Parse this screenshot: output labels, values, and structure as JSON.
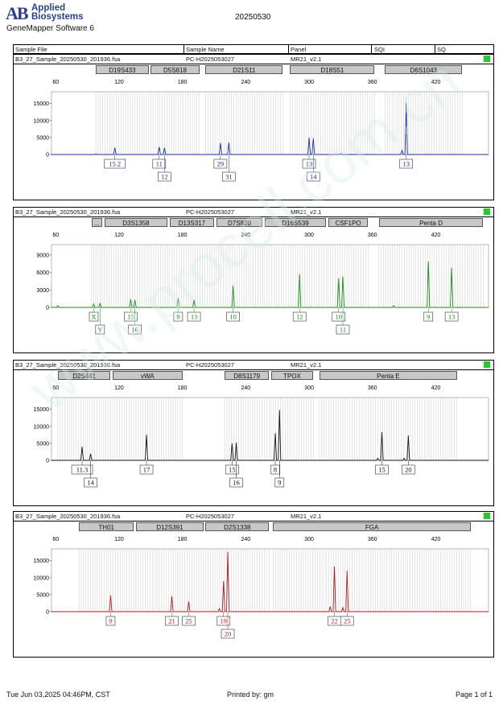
{
  "header": {
    "logo_mark": "AB",
    "brand_line1": "Applied",
    "brand_line2": "Biosystems",
    "app_title": "GeneMapper Software 6",
    "run_date": "20250530",
    "columns": [
      "Sample File",
      "Sample Name",
      "Panel",
      "SQI",
      "SQ"
    ]
  },
  "footer": {
    "printed_date": "Tue Jun 03,2025 04:46PM, CST",
    "printed_by": "Printed by: gm",
    "page": "Page 1 of 1"
  },
  "watermark": "www.procell.com.cn",
  "chart_data": [
    {
      "type": "line",
      "sample_file": "B3_27_Sample_20250530_201936.fsa",
      "sample_name": "PC-H2025053027",
      "panel": "MR21_v2.1",
      "color": "#1a2ea0",
      "markers": [
        {
          "label": "D19S433",
          "start": 98,
          "end": 148
        },
        {
          "label": "D5S818",
          "start": 150,
          "end": 196
        },
        {
          "label": "D21S11",
          "start": 202,
          "end": 275
        },
        {
          "label": "D18S51",
          "start": 282,
          "end": 362
        },
        {
          "label": "D6S1043",
          "start": 372,
          "end": 445
        }
      ],
      "x_ticks": [
        60,
        120,
        180,
        240,
        300,
        360,
        420
      ],
      "xlim": [
        56,
        470
      ],
      "y_ticks": [
        0,
        5000,
        10000,
        15000
      ],
      "ylim": [
        0,
        18000
      ],
      "peaks": [
        {
          "x": 116,
          "y": 2000,
          "allele": "15.2"
        },
        {
          "x": 158,
          "y": 2200,
          "allele": "11"
        },
        {
          "x": 163,
          "y": 2000,
          "allele": "12"
        },
        {
          "x": 216,
          "y": 3400,
          "allele": "29"
        },
        {
          "x": 224,
          "y": 3500,
          "allele": "31"
        },
        {
          "x": 300,
          "y": 5000,
          "allele": "13"
        },
        {
          "x": 304,
          "y": 4800,
          "allele": "14"
        },
        {
          "x": 392,
          "y": 15200,
          "allele": "13"
        }
      ],
      "small_peaks": [
        {
          "x": 98,
          "y": 200
        },
        {
          "x": 330,
          "y": 300
        },
        {
          "x": 388,
          "y": 1200
        }
      ]
    },
    {
      "type": "line",
      "sample_file": "B3_27_Sample_20250530_201936.fsa",
      "sample_name": "PC-H2025053027",
      "panel": "MR21_v2.1",
      "color": "#1a8c1a",
      "markers": [
        {
          "label": "...",
          "start": 94,
          "end": 104
        },
        {
          "label": "D3S1358",
          "start": 106,
          "end": 166
        },
        {
          "label": "D13S317",
          "start": 168,
          "end": 210
        },
        {
          "label": "D7S820",
          "start": 212,
          "end": 256
        },
        {
          "label": "D16S539",
          "start": 258,
          "end": 316
        },
        {
          "label": "CSF1PO",
          "start": 318,
          "end": 356
        },
        {
          "label": "Penta D",
          "start": 366,
          "end": 465
        }
      ],
      "x_ticks": [
        60,
        120,
        180,
        240,
        300,
        360,
        420
      ],
      "xlim": [
        56,
        470
      ],
      "y_ticks": [
        0,
        3000,
        6000,
        9000
      ],
      "ylim": [
        0,
        10500
      ],
      "peaks": [
        {
          "x": 96,
          "y": 600,
          "allele": "X"
        },
        {
          "x": 102,
          "y": 700,
          "allele": "Y"
        },
        {
          "x": 131,
          "y": 1400,
          "allele": "15"
        },
        {
          "x": 135,
          "y": 1300,
          "allele": "16"
        },
        {
          "x": 176,
          "y": 1600,
          "allele": "9"
        },
        {
          "x": 191,
          "y": 1300,
          "allele": "13"
        },
        {
          "x": 228,
          "y": 3700,
          "allele": "10"
        },
        {
          "x": 291,
          "y": 5700,
          "allele": "12"
        },
        {
          "x": 328,
          "y": 5000,
          "allele": "10"
        },
        {
          "x": 332,
          "y": 5300,
          "allele": "11"
        },
        {
          "x": 413,
          "y": 7900,
          "allele": "9"
        },
        {
          "x": 435,
          "y": 6800,
          "allele": "13"
        }
      ],
      "small_peaks": [
        {
          "x": 62,
          "y": 300
        },
        {
          "x": 380,
          "y": 300
        }
      ]
    },
    {
      "type": "line",
      "sample_file": "B3_27_Sample_20250530_201936.fsa",
      "sample_name": "PC-H2025053027",
      "panel": "MR21_v2.1",
      "color": "#111111",
      "markers": [
        {
          "label": "D2S441",
          "start": 62,
          "end": 112
        },
        {
          "label": "vWA",
          "start": 114,
          "end": 180
        },
        {
          "label": "D8S1179",
          "start": 220,
          "end": 262
        },
        {
          "label": "TPOX",
          "start": 264,
          "end": 304
        },
        {
          "label": "Penta E",
          "start": 310,
          "end": 440
        }
      ],
      "x_ticks": [
        60,
        120,
        180,
        240,
        300,
        360,
        420
      ],
      "xlim": [
        56,
        470
      ],
      "y_ticks": [
        0,
        5000,
        10000,
        15000
      ],
      "ylim": [
        0,
        18000
      ],
      "peaks": [
        {
          "x": 85,
          "y": 4000,
          "allele": "11.3"
        },
        {
          "x": 93,
          "y": 1900,
          "allele": "14"
        },
        {
          "x": 146,
          "y": 7500,
          "allele": "17"
        },
        {
          "x": 227,
          "y": 5000,
          "allele": "15"
        },
        {
          "x": 231,
          "y": 5200,
          "allele": "16"
        },
        {
          "x": 268,
          "y": 8000,
          "allele": "8"
        },
        {
          "x": 272,
          "y": 14800,
          "allele": "9"
        },
        {
          "x": 369,
          "y": 8300,
          "allele": "15"
        },
        {
          "x": 394,
          "y": 7300,
          "allele": "20"
        }
      ],
      "small_peaks": [
        {
          "x": 365,
          "y": 600
        },
        {
          "x": 390,
          "y": 600
        }
      ]
    },
    {
      "type": "line",
      "sample_file": "B3_27_Sample_20250530_201936.fsa",
      "sample_name": "PC-H2025053027",
      "panel": "MR21_v2.1",
      "color": "#b01a1a",
      "markers": [
        {
          "label": "TH01",
          "start": 82,
          "end": 134
        },
        {
          "label": "D12S391",
          "start": 136,
          "end": 200
        },
        {
          "label": "D2S1338",
          "start": 202,
          "end": 262
        },
        {
          "label": "FGA",
          "start": 266,
          "end": 453
        }
      ],
      "x_ticks": [
        60,
        120,
        180,
        240,
        300,
        360,
        420
      ],
      "xlim": [
        56,
        470
      ],
      "y_ticks": [
        0,
        5000,
        10000,
        15000
      ],
      "ylim": [
        0,
        18000
      ],
      "peaks": [
        {
          "x": 112,
          "y": 4800,
          "allele": "9"
        },
        {
          "x": 170,
          "y": 4500,
          "allele": "21"
        },
        {
          "x": 186,
          "y": 3000,
          "allele": "25"
        },
        {
          "x": 219,
          "y": 9000,
          "allele": "19"
        },
        {
          "x": 223,
          "y": 17600,
          "allele": "20"
        },
        {
          "x": 324,
          "y": 13300,
          "allele": "22"
        },
        {
          "x": 336,
          "y": 12000,
          "allele": "25"
        }
      ],
      "small_peaks": [
        {
          "x": 215,
          "y": 900
        },
        {
          "x": 320,
          "y": 1500
        },
        {
          "x": 332,
          "y": 1200
        }
      ]
    }
  ]
}
